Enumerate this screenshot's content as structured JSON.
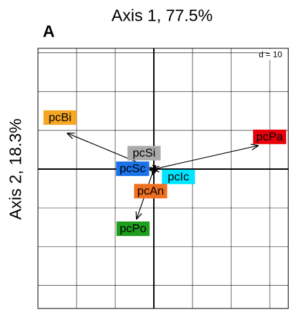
{
  "chart_data": {
    "type": "arrow",
    "panel": "A",
    "xlabel": "Axis 1, 77.5%",
    "ylabel": "Axis 2, 18.3%",
    "grid_label": "d = 10",
    "xlim": [
      -30,
      34.8
    ],
    "ylim": [
      -36,
      31.2
    ],
    "xticks": [
      -20,
      -10,
      0,
      10,
      20,
      30
    ],
    "yticks": [
      -30,
      -20,
      -10,
      0,
      10,
      20,
      30
    ],
    "grid": true,
    "points": [
      {
        "label": "pcBi",
        "x": -22.5,
        "y": 9.3,
        "color": "#f5a623"
      },
      {
        "label": "pcPa",
        "x": 27.1,
        "y": 6.1,
        "color": "#e8000b"
      },
      {
        "label": "pcSi",
        "x": 0.5,
        "y": 1,
        "color": "#aaaaaa"
      },
      {
        "label": "pcSc",
        "x": -0.5,
        "y": 0,
        "color": "#1a73e8"
      },
      {
        "label": "pcIc",
        "x": 1,
        "y": -0.5,
        "color": "#00e5ff"
      },
      {
        "label": "pcAn",
        "x": -0.3,
        "y": -1.5,
        "color": "#f07022"
      },
      {
        "label": "pcPo",
        "x": -4.5,
        "y": -13,
        "color": "#1e9e1e"
      }
    ]
  }
}
